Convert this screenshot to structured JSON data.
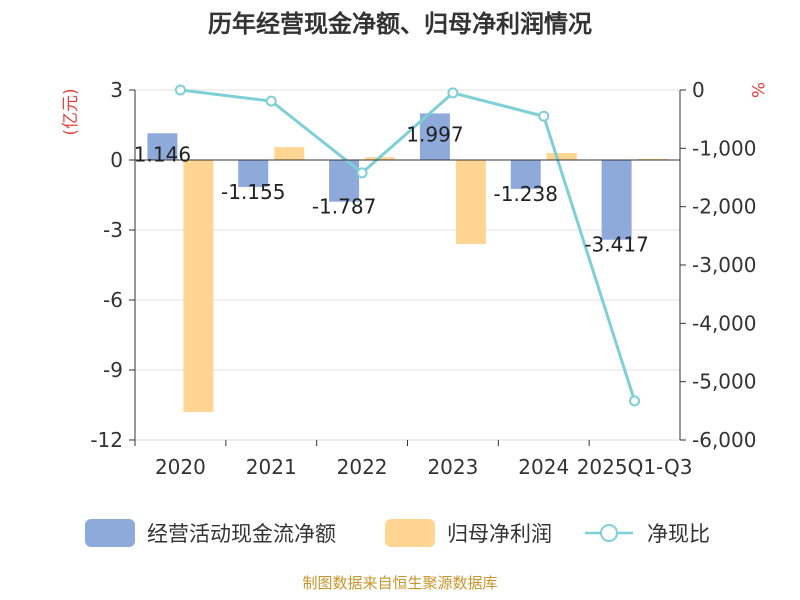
{
  "chart_data": {
    "type": "bar",
    "title": "历年经营现金净额、归母净利润情况",
    "categories": [
      "2020",
      "2021",
      "2022",
      "2023",
      "2024",
      "2025Q1-Q3"
    ],
    "left_axis": {
      "unit": "(亿元)",
      "ylim": [
        -12,
        3
      ],
      "ticks": [
        "3",
        "0",
        "-3",
        "-6",
        "-9",
        "-12"
      ],
      "tick_values": [
        3,
        0,
        -3,
        -6,
        -9,
        -12
      ]
    },
    "right_axis": {
      "unit": "%",
      "ylim": [
        -6000,
        0
      ],
      "ticks": [
        "0",
        "-1,000",
        "-2,000",
        "-3,000",
        "-4,000",
        "-5,000",
        "-6,000"
      ],
      "tick_values": [
        0,
        -1000,
        -2000,
        -3000,
        -4000,
        -5000,
        -6000
      ]
    },
    "series": [
      {
        "name": "经营活动现金流净额",
        "type": "bar",
        "axis": "left",
        "color": "#8eaadb",
        "values": [
          1.146,
          -1.155,
          -1.787,
          1.997,
          -1.238,
          -3.417
        ],
        "labels": [
          "1.146",
          "-1.155",
          "-1.787",
          "1.997",
          "-1.238",
          "-3.417"
        ]
      },
      {
        "name": "归母净利润",
        "type": "bar",
        "axis": "left",
        "color": "#ffd591",
        "values": [
          -10.8,
          0.55,
          0.12,
          -3.6,
          0.3,
          0.05
        ]
      },
      {
        "name": "净现比",
        "type": "line",
        "axis": "right",
        "color": "#7fd0d6",
        "values": [
          0,
          -190,
          -1420,
          -50,
          -450,
          -5330
        ]
      }
    ],
    "source": "制图数据来自恒生聚源数据库"
  }
}
